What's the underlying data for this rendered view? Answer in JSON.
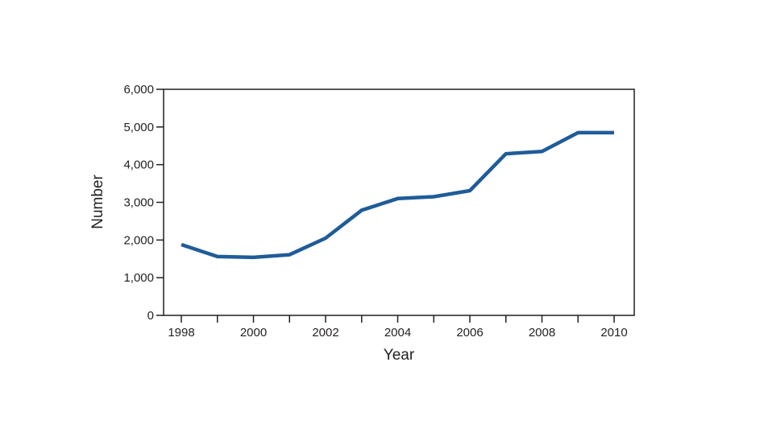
{
  "chart_data": {
    "type": "line",
    "xlabel": "Year",
    "ylabel": "Number",
    "xlim": [
      1998,
      2010
    ],
    "ylim": [
      0,
      6000
    ],
    "x_ticks": [
      1998,
      1999,
      2000,
      2001,
      2002,
      2003,
      2004,
      2005,
      2006,
      2007,
      2008,
      2009,
      2010
    ],
    "x_tick_labels": [
      "1998",
      "2000",
      "2002",
      "2004",
      "2006",
      "2008",
      "2010"
    ],
    "y_ticks": [
      0,
      1000,
      2000,
      3000,
      4000,
      5000,
      6000
    ],
    "y_tick_labels": [
      "0",
      "1,000",
      "2,000",
      "3,000",
      "4,000",
      "5,000",
      "6,000"
    ],
    "grid": false,
    "line_color": "#1f5c99",
    "series": [
      {
        "x": [
          1998,
          1999,
          2000,
          2001,
          2002,
          2003,
          2004,
          2005,
          2006,
          2007,
          2008,
          2009,
          2010
        ],
        "values": [
          1880,
          1560,
          1540,
          1610,
          2050,
          2790,
          3100,
          3150,
          3310,
          4290,
          4350,
          4850,
          4850
        ]
      }
    ]
  }
}
